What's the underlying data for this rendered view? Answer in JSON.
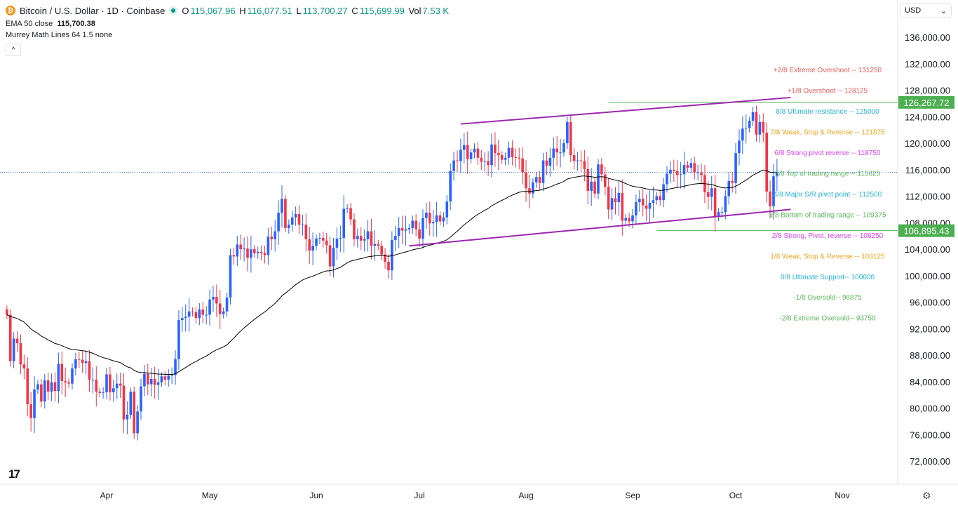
{
  "header": {
    "symbol": "Bitcoin / U.S. Dollar · 1D · Coinbase",
    "o_label": "O",
    "o": "115,067.96",
    "h_label": "H",
    "h": "116,077.51",
    "l_label": "L",
    "l": "113,700.27",
    "c_label": "C",
    "c": "115,699.99",
    "vol_label": "Vol",
    "vol": "7.53 K",
    "ema_label": "EMA 50 close",
    "ema_value": "115,700.38",
    "murrey_label": "Murrey Math Lines 64 1.5 none",
    "collapse_icon": "chevron-up-icon",
    "currency": "USD"
  },
  "chart_data": {
    "type": "candlestick",
    "start_date": "2025-03-03",
    "ylim": [
      70000,
      138000
    ],
    "y_ticks": [
      72000,
      76000,
      80000,
      84000,
      88000,
      92000,
      96000,
      100000,
      104000,
      108000,
      112000,
      116000,
      120000,
      124000,
      128000,
      132000,
      136000
    ],
    "y_tick_labels": [
      "72,000.00",
      "76,000.00",
      "80,000.00",
      "84,000.00",
      "88,000.00",
      "92,000.00",
      "96,000.00",
      "100,000.00",
      "104,000.00",
      "108,000.00",
      "112,000.00",
      "116,000.00",
      "120,000.00",
      "124,000.00",
      "128,000.00",
      "132,000.00",
      "136,000.00"
    ],
    "x_ticks": [
      {
        "label": "Apr",
        "date": "2025-04-01"
      },
      {
        "label": "May",
        "date": "2025-05-01"
      },
      {
        "label": "Jun",
        "date": "2025-06-01"
      },
      {
        "label": "Jul",
        "date": "2025-07-01"
      },
      {
        "label": "Aug",
        "date": "2025-08-01"
      },
      {
        "label": "Sep",
        "date": "2025-09-01"
      },
      {
        "label": "Oct",
        "date": "2025-10-01"
      },
      {
        "label": "Nov",
        "date": "2025-11-01"
      }
    ],
    "closes": [
      94200,
      87200,
      90600,
      89900,
      86700,
      86100,
      80700,
      78600,
      82900,
      83700,
      81100,
      84300,
      82600,
      84000,
      82700,
      86800,
      84200,
      84000,
      83800,
      86100,
      87500,
      87400,
      86900,
      87200,
      84400,
      84400,
      82600,
      82400,
      82500,
      85200,
      82500,
      83100,
      83800,
      83500,
      78400,
      79100,
      82600,
      76300,
      79600,
      83400,
      85300,
      83700,
      84500,
      83600,
      84000,
      84900,
      84400,
      85000,
      85100,
      87500,
      93400,
      93700,
      93900,
      94700,
      94600,
      93700,
      95000,
      94200,
      94200,
      96500,
      96900,
      95900,
      94300,
      94700,
      96800,
      103200,
      103000,
      104800,
      104100,
      104200,
      102800,
      104100,
      103500,
      103700,
      103500,
      103200,
      106000,
      105600,
      106800,
      109600,
      111700,
      107300,
      107800,
      108900,
      109400,
      107800,
      107800,
      105600,
      103900,
      104600,
      105700,
      105800,
      105400,
      104700,
      101500,
      104300,
      105700,
      105800,
      110200,
      110300,
      108600,
      105600,
      106100,
      105400,
      105600,
      106800,
      104600,
      104900,
      104600,
      103300,
      102200,
      100900,
      105500,
      106100,
      107300,
      106900,
      107100,
      107300,
      108400,
      107100,
      105700,
      108800,
      109600,
      108000,
      108200,
      109200,
      108300,
      108900,
      111300,
      115900,
      117500,
      117400,
      119100,
      119800,
      117700,
      118700,
      119300,
      117900,
      117300,
      117400,
      116800,
      119900,
      118600,
      118300,
      117600,
      117900,
      119400,
      118000,
      117900,
      117800,
      115700,
      113300,
      112500,
      114200,
      115000,
      114100,
      117500,
      116700,
      117900,
      119300,
      118700,
      118700,
      120100,
      123300,
      118300,
      117400,
      117500,
      117400,
      116200,
      112900,
      114300,
      112500,
      116900,
      115400,
      113500,
      110100,
      111800,
      111200,
      112600,
      108400,
      108800,
      108300,
      109200,
      111200,
      111700,
      110700,
      110200,
      111100,
      111500,
      112100,
      111500,
      113900,
      115500,
      116100,
      115900,
      115300,
      115400,
      116800,
      116400,
      117100,
      115700,
      115700,
      115300,
      112700,
      112000,
      113300,
      109000,
      109700,
      109700,
      112100,
      114400,
      114100,
      118600,
      120500,
      122300,
      122400,
      123500,
      124800,
      121400,
      123300,
      121700,
      112800,
      110600,
      115100,
      115700
    ],
    "ema_period": 50,
    "up_color": "#2962ff",
    "down_color": "#f23645",
    "ema_color": "#000000",
    "channel_color": "#9c27b0",
    "channel": {
      "upper": [
        {
          "date": "2025-07-13",
          "price": 123000
        },
        {
          "date": "2025-10-17",
          "price": 127000
        }
      ],
      "lower": [
        {
          "date": "2025-06-28",
          "price": 104600
        },
        {
          "date": "2025-10-17",
          "price": 110100
        }
      ]
    },
    "price_levels": [
      {
        "price": 126267.72,
        "label": "126,267.72",
        "from": "2025-08-25",
        "color": "#4caf50"
      },
      {
        "price": 106895.43,
        "label": "106,895.43",
        "from": "2025-09-08",
        "color": "#4caf50"
      }
    ],
    "last_price": 115699.99,
    "murrey": [
      {
        "price": 131250,
        "label": "+2/8 Extreme Overshoot --  131250",
        "color": "#f05a5a"
      },
      {
        "price": 128125,
        "label": "+1/8 Overshoot --  128125",
        "color": "#f05a5a"
      },
      {
        "price": 125000,
        "label": "8/8 Ultimate resistance --  125000",
        "color": "#26b3d6"
      },
      {
        "price": 121875,
        "label": "7/8 Weak, Stop & Reverse --  121875",
        "color": "#f5a623"
      },
      {
        "price": 118750,
        "label": "6/8 Strong pivot reverse --  118750",
        "color": "#e040fb"
      },
      {
        "price": 115625,
        "label": "5/8 Top of trading range --  115625",
        "color": "#5cb85c"
      },
      {
        "price": 112500,
        "label": "4/8 Major S/R pivot point --  112500",
        "color": "#26b3d6"
      },
      {
        "price": 109375,
        "label": "3/8 Bottom of trading range --  109375",
        "color": "#5cb85c"
      },
      {
        "price": 106250,
        "label": "2/8 Strong, Pivot, reverse --  106250",
        "color": "#e040fb"
      },
      {
        "price": 103125,
        "label": "1/8 Weak, Stop & Reverse --  103125",
        "color": "#f5a623"
      },
      {
        "price": 100000,
        "label": "0/8 Ultimate Support--  100000",
        "color": "#26b3d6"
      },
      {
        "price": 96875,
        "label": "-1/8 Oversold--  96875",
        "color": "#5cb85c"
      },
      {
        "price": 93750,
        "label": "-2/8 Extreme Oversold--  93750",
        "color": "#5cb85c"
      }
    ]
  }
}
